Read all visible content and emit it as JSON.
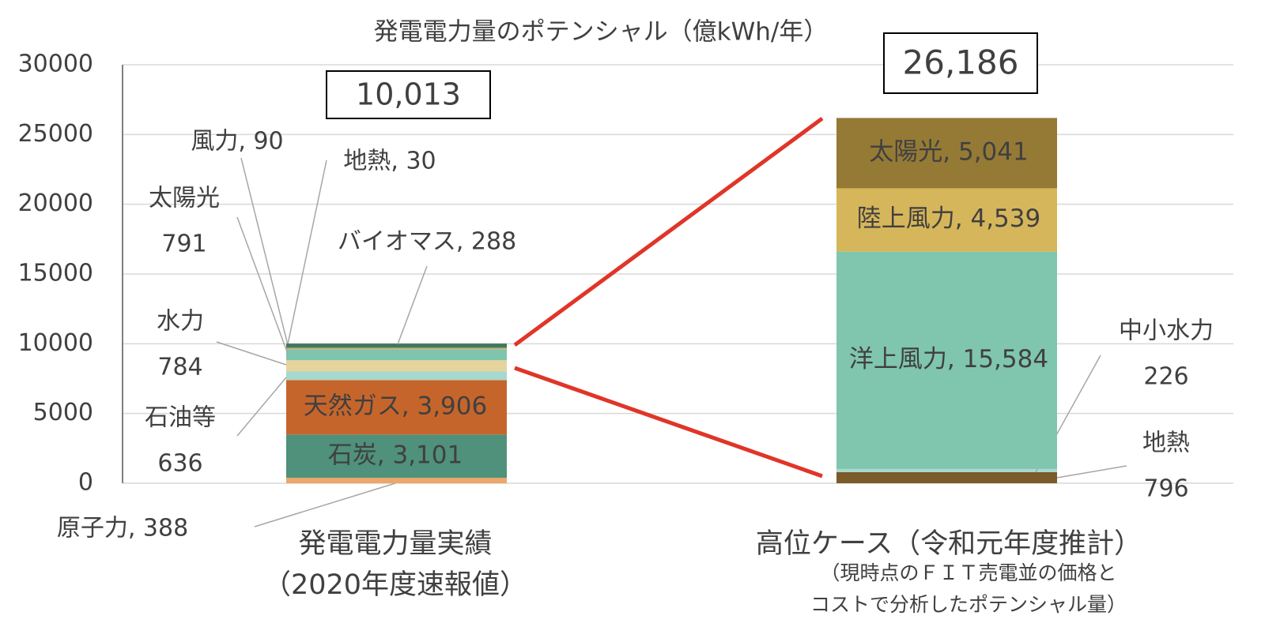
{
  "chart_data": {
    "type": "stacked-bar",
    "title": "発電電力量のポテンシャル（億kWh/年）",
    "ylim": [
      0,
      30000
    ],
    "yticks": [
      0,
      5000,
      10000,
      15000,
      20000,
      25000,
      30000
    ],
    "grid": true,
    "bars": [
      {
        "category": [
          "発電電力量実績",
          "（2020年度速報値）"
        ],
        "total": {
          "value": 10013,
          "label": "10,013"
        },
        "segments": [
          {
            "label": [
              "原子力, 388"
            ],
            "value": 388,
            "color": "#eea66a"
          },
          {
            "label": [
              "石炭, 3,101"
            ],
            "value": 3101,
            "color": "#4f917a"
          },
          {
            "label": [
              "天然ガス, 3,906"
            ],
            "value": 3906,
            "color": "#c6652b"
          },
          {
            "label": [
              "石油等",
              "636"
            ],
            "value": 636,
            "color": "#a9d8cc"
          },
          {
            "label": [
              "水力",
              "784"
            ],
            "value": 784,
            "color": "#e6d49c"
          },
          {
            "label": [
              "太陽光",
              "791"
            ],
            "value": 791,
            "color": "#7fc5ae"
          },
          {
            "label": [
              "風力, 90"
            ],
            "value": 90,
            "color": "#c9a96b"
          },
          {
            "label": [
              "地熱, 30"
            ],
            "value": 30,
            "color": "#8c6c2e"
          },
          {
            "label": [
              "バイオマス, 288"
            ],
            "value": 288,
            "color": "#3d7a5d"
          }
        ]
      },
      {
        "category": [
          "高位ケース（令和元年度推計）"
        ],
        "note": [
          "（現時点のＦＩＴ売電並の価格と",
          "コストで分析したポテンシャル量）"
        ],
        "total": {
          "value": 26186,
          "label": "26,186"
        },
        "segments": [
          {
            "label": [
              "地熱",
              "796"
            ],
            "value": 796,
            "color": "#7b5b2a"
          },
          {
            "label": [
              "中小水力",
              "226"
            ],
            "value": 226,
            "color": "#a9d8cc"
          },
          {
            "label": [
              "洋上風力, 15,584"
            ],
            "value": 15584,
            "color": "#80c6ae"
          },
          {
            "label": [
              "陸上風力, 4,539"
            ],
            "value": 4539,
            "color": "#d6b65a"
          },
          {
            "label": [
              "太陽光, 5,041"
            ],
            "value": 5041,
            "color": "#957a35"
          }
        ]
      }
    ]
  }
}
